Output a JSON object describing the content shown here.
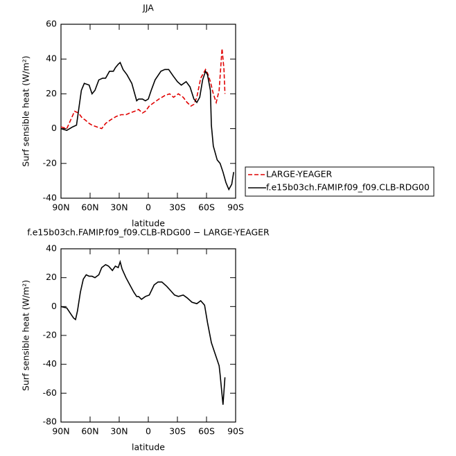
{
  "chart_data": [
    {
      "type": "line",
      "title": "JJA",
      "xlabel": "latitude",
      "ylabel": "Surf sensible heat (W/m²)",
      "xlim": [
        90,
        -90
      ],
      "ylim": [
        -40,
        60
      ],
      "xticks": [
        {
          "value": 90,
          "label": "90N"
        },
        {
          "value": 60,
          "label": "60N"
        },
        {
          "value": 30,
          "label": "30N"
        },
        0,
        {
          "value": -30,
          "label": "30S"
        },
        {
          "value": -60,
          "label": "60S"
        },
        {
          "value": -90,
          "label": "90S"
        }
      ],
      "yticks": [
        -40,
        -20,
        0,
        20,
        40,
        60
      ],
      "legend": "right",
      "series": [
        {
          "name": "LARGE-YEAGER",
          "color": "#e00000",
          "dash": true,
          "x": [
            90,
            84,
            80,
            76,
            72,
            68,
            65,
            61,
            58,
            53,
            48,
            44,
            39,
            33,
            28,
            23,
            19,
            14,
            10,
            6,
            3,
            -1,
            -6,
            -11,
            -17,
            -22,
            -26,
            -31,
            -36,
            -40,
            -44,
            -47,
            -50,
            -54,
            -59,
            -61,
            -64,
            -67,
            -70,
            -73,
            -76,
            -78,
            -79
          ],
          "values": [
            1,
            0,
            5,
            10,
            9,
            6,
            5,
            3,
            2,
            1,
            0,
            3,
            5,
            7,
            8,
            8,
            9,
            10,
            11,
            9,
            10,
            13,
            15,
            17,
            19,
            20,
            18,
            20,
            18,
            15,
            13,
            14,
            18,
            29,
            34,
            32,
            27,
            20,
            15,
            22,
            46,
            34,
            20
          ]
        },
        {
          "name": "f.e15b03ch.FAMIP.f09_f09.CLB-RDG00",
          "color": "#000000",
          "dash": false,
          "x": [
            90,
            84,
            78,
            74,
            72,
            69,
            66,
            61,
            58,
            55,
            51,
            47,
            44,
            40,
            36,
            34,
            31,
            29,
            26,
            22,
            17,
            14,
            12,
            10,
            6,
            3,
            0,
            -3,
            -7,
            -13,
            -17,
            -21,
            -26,
            -30,
            -34,
            -39,
            -43,
            -47,
            -50,
            -53,
            -56,
            -59,
            -61,
            -64,
            -65,
            -67,
            -71,
            -74,
            -77,
            -80,
            -83,
            -86,
            -88
          ],
          "values": [
            0,
            -1,
            1,
            2,
            10,
            22,
            26,
            25,
            20,
            22,
            28,
            29,
            29,
            33,
            33,
            35,
            37,
            38,
            34,
            31,
            26,
            20,
            16,
            17,
            17,
            16,
            17,
            22,
            28,
            33,
            34,
            34,
            30,
            27,
            25,
            27,
            24,
            17,
            15,
            18,
            28,
            33,
            31,
            22,
            2,
            -10,
            -18,
            -20,
            -25,
            -31,
            -35,
            -32,
            -25
          ]
        }
      ]
    },
    {
      "type": "line",
      "title": "f.e15b03ch.FAMIP.f09_f09.CLB-RDG00 − LARGE-YEAGER",
      "xlabel": "latitude",
      "ylabel": "Surf sensible heat (W/m²)",
      "xlim": [
        90,
        -90
      ],
      "ylim": [
        -80,
        40
      ],
      "xticks": [
        {
          "value": 90,
          "label": "90N"
        },
        {
          "value": 60,
          "label": "60N"
        },
        {
          "value": 30,
          "label": "30N"
        },
        0,
        {
          "value": -30,
          "label": "30S"
        },
        {
          "value": -60,
          "label": "60S"
        },
        {
          "value": -90,
          "label": "90S"
        }
      ],
      "yticks": [
        -80,
        -60,
        -40,
        -20,
        0,
        20,
        40
      ],
      "series": [
        {
          "color": "#000000",
          "dash": false,
          "x": [
            90,
            84,
            80,
            77,
            75,
            73,
            70,
            67,
            64,
            61,
            58,
            55,
            51,
            48,
            44,
            41,
            37,
            34,
            31,
            29,
            27,
            23,
            19,
            15,
            12,
            10,
            7,
            3,
            -1,
            -6,
            -10,
            -14,
            -19,
            -23,
            -27,
            -31,
            -36,
            -40,
            -45,
            -50,
            -54,
            -58,
            -61,
            -65,
            -70,
            -73,
            -74,
            -77,
            -79
          ],
          "values": [
            0,
            -1,
            -5,
            -8,
            -9,
            -3,
            10,
            19,
            22,
            21,
            21,
            20,
            22,
            27,
            29,
            28,
            25,
            28,
            27,
            31,
            26,
            20,
            15,
            10,
            7,
            7,
            5,
            7,
            8,
            15,
            17,
            17,
            14,
            11,
            8,
            7,
            8,
            6,
            3,
            2,
            4,
            1,
            -11,
            -25,
            -35,
            -41,
            -47,
            -68,
            -49
          ]
        }
      ]
    }
  ]
}
